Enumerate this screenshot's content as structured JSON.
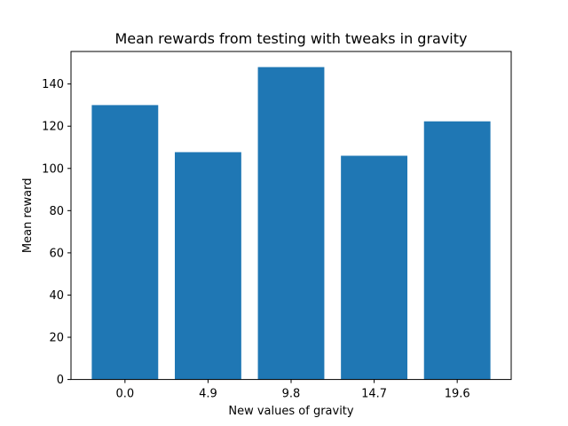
{
  "chart_data": {
    "type": "bar",
    "title": "Mean rewards from testing with tweaks in gravity",
    "xlabel": "New values of gravity",
    "ylabel": "Mean reward",
    "categories": [
      "0.0",
      "4.9",
      "9.8",
      "14.7",
      "19.6"
    ],
    "values": [
      130,
      107.7,
      148,
      106,
      122.3
    ],
    "ylim": [
      0,
      155.4
    ],
    "yticks": [
      0,
      20,
      40,
      60,
      80,
      100,
      120,
      140
    ],
    "grid": false,
    "bar_color": "#1f77b4"
  }
}
